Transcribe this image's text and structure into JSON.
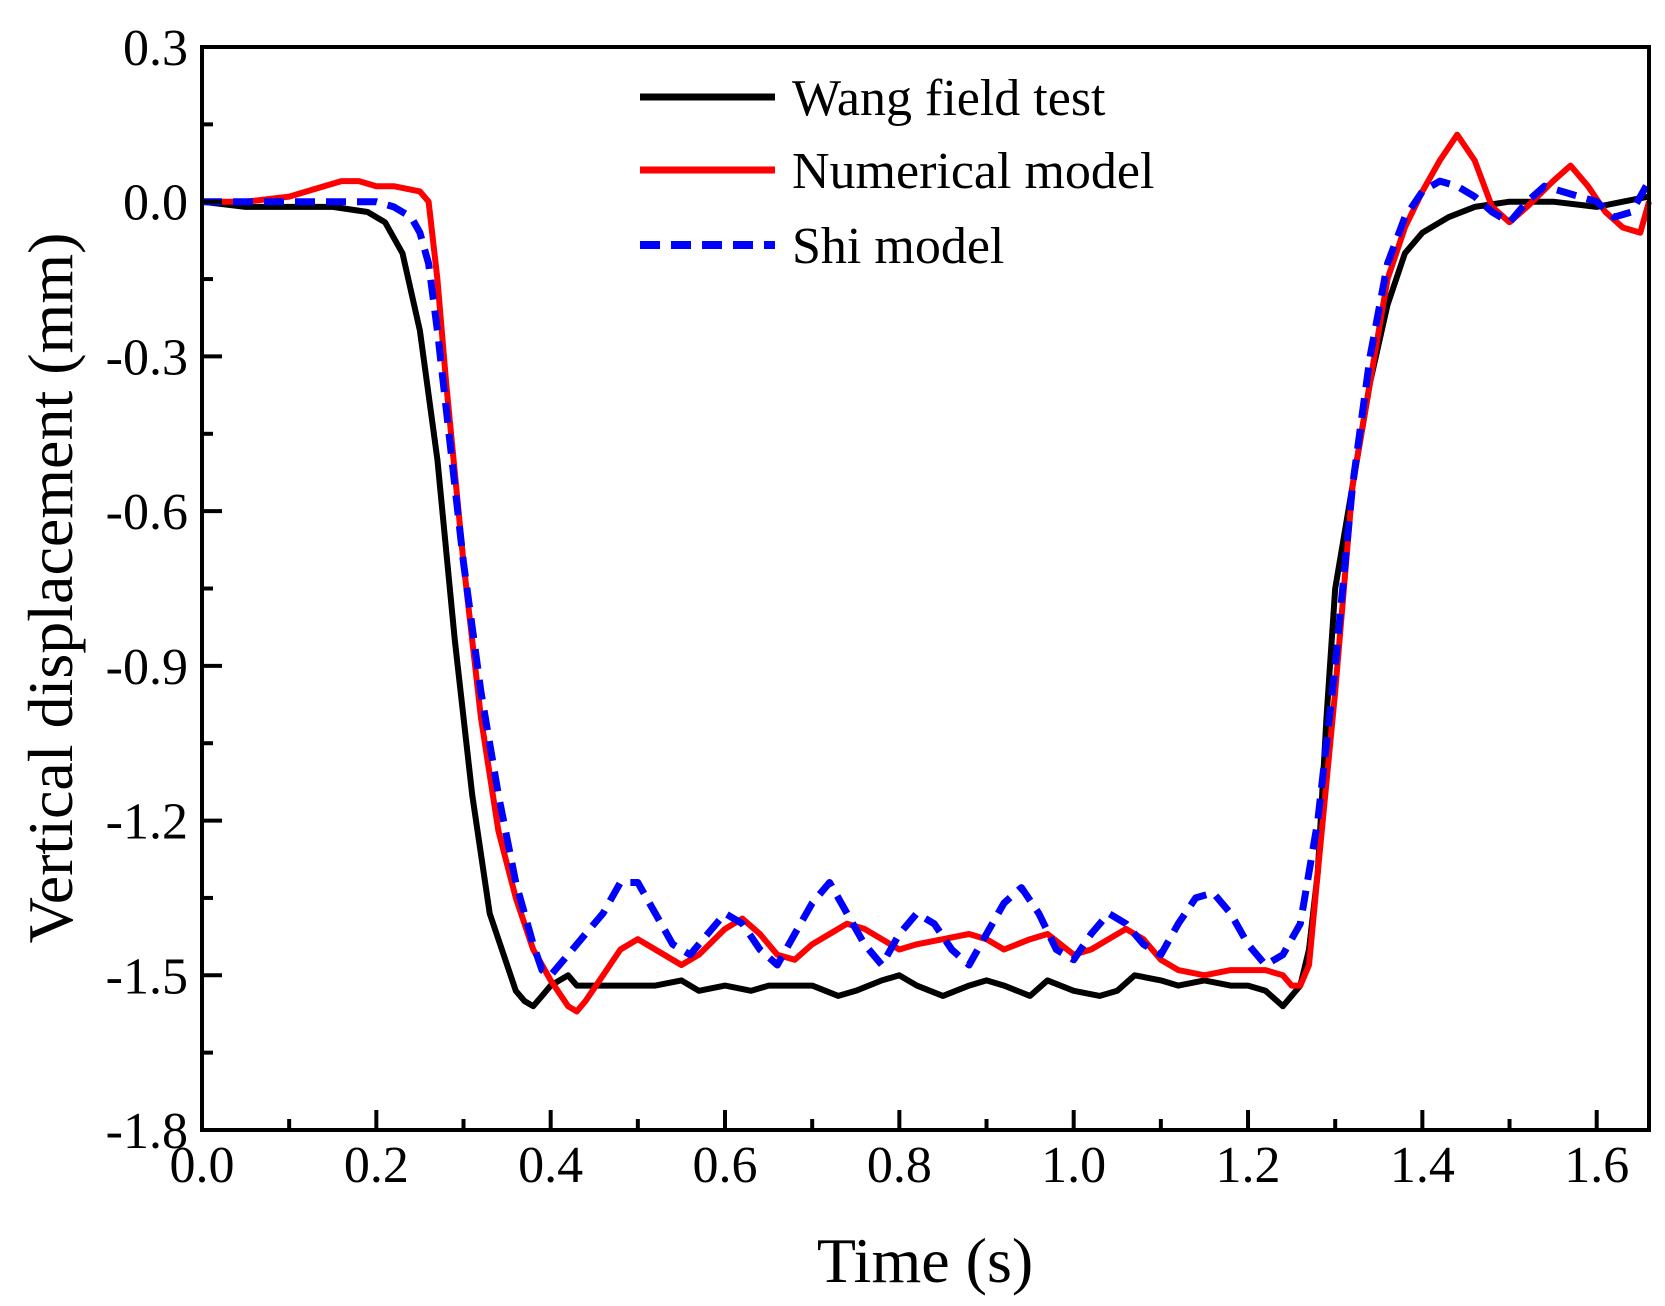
{
  "chart_data": {
    "type": "line",
    "title": "",
    "xlabel": "Time (s)",
    "ylabel": "Vertical displacement (mm)",
    "xlim": [
      0.0,
      1.66
    ],
    "ylim": [
      -1.8,
      0.3
    ],
    "x_ticks": [
      0.0,
      0.2,
      0.4,
      0.6,
      0.8,
      1.0,
      1.2,
      1.4,
      1.6
    ],
    "x_tick_labels": [
      "0.0",
      "0.2",
      "0.4",
      "0.6",
      "0.8",
      "1.0",
      "1.2",
      "1.4",
      "1.6"
    ],
    "y_ticks": [
      0.3,
      0.0,
      -0.3,
      -0.6,
      -0.9,
      -1.2,
      -1.5,
      -1.8
    ],
    "y_tick_labels": [
      "0.3",
      "0.0",
      "-0.3",
      "-0.6",
      "-0.9",
      "-1.2",
      "-1.5",
      "-1.8"
    ],
    "grid": false,
    "legend_position": "top-center",
    "series": [
      {
        "name": "Wang field test",
        "color": "#000000",
        "style": "solid",
        "x": [
          0.0,
          0.05,
          0.1,
          0.15,
          0.19,
          0.21,
          0.23,
          0.25,
          0.27,
          0.29,
          0.31,
          0.33,
          0.35,
          0.36,
          0.37,
          0.38,
          0.39,
          0.4,
          0.42,
          0.43,
          0.45,
          0.48,
          0.52,
          0.55,
          0.57,
          0.6,
          0.63,
          0.65,
          0.68,
          0.7,
          0.73,
          0.75,
          0.78,
          0.8,
          0.82,
          0.85,
          0.88,
          0.9,
          0.92,
          0.95,
          0.97,
          1.0,
          1.03,
          1.05,
          1.07,
          1.1,
          1.12,
          1.15,
          1.18,
          1.2,
          1.22,
          1.24,
          1.26,
          1.27,
          1.28,
          1.29,
          1.3,
          1.32,
          1.34,
          1.36,
          1.38,
          1.4,
          1.43,
          1.46,
          1.5,
          1.55,
          1.6,
          1.63,
          1.66
        ],
        "y": [
          0.0,
          -0.01,
          -0.01,
          -0.01,
          -0.02,
          -0.04,
          -0.1,
          -0.25,
          -0.5,
          -0.85,
          -1.15,
          -1.38,
          -1.48,
          -1.53,
          -1.55,
          -1.56,
          -1.54,
          -1.52,
          -1.5,
          -1.52,
          -1.52,
          -1.52,
          -1.52,
          -1.51,
          -1.53,
          -1.52,
          -1.53,
          -1.52,
          -1.52,
          -1.52,
          -1.54,
          -1.53,
          -1.51,
          -1.5,
          -1.52,
          -1.54,
          -1.52,
          -1.51,
          -1.52,
          -1.54,
          -1.51,
          -1.53,
          -1.54,
          -1.53,
          -1.5,
          -1.51,
          -1.52,
          -1.51,
          -1.52,
          -1.52,
          -1.53,
          -1.56,
          -1.52,
          -1.45,
          -1.3,
          -1.0,
          -0.75,
          -0.55,
          -0.35,
          -0.2,
          -0.1,
          -0.06,
          -0.03,
          -0.01,
          0.0,
          0.0,
          -0.01,
          0.0,
          0.01
        ]
      },
      {
        "name": "Numerical model",
        "color": "#ff0000",
        "style": "solid",
        "x": [
          0.0,
          0.05,
          0.1,
          0.14,
          0.16,
          0.18,
          0.2,
          0.22,
          0.25,
          0.26,
          0.27,
          0.28,
          0.3,
          0.32,
          0.34,
          0.36,
          0.38,
          0.4,
          0.42,
          0.43,
          0.44,
          0.46,
          0.48,
          0.5,
          0.52,
          0.55,
          0.57,
          0.6,
          0.62,
          0.64,
          0.66,
          0.68,
          0.7,
          0.72,
          0.74,
          0.76,
          0.78,
          0.8,
          0.82,
          0.85,
          0.88,
          0.9,
          0.92,
          0.95,
          0.97,
          1.0,
          1.02,
          1.04,
          1.06,
          1.08,
          1.1,
          1.12,
          1.15,
          1.18,
          1.2,
          1.22,
          1.24,
          1.25,
          1.26,
          1.27,
          1.28,
          1.3,
          1.32,
          1.34,
          1.36,
          1.38,
          1.4,
          1.42,
          1.44,
          1.46,
          1.48,
          1.5,
          1.52,
          1.55,
          1.57,
          1.59,
          1.61,
          1.63,
          1.65,
          1.66
        ],
        "y": [
          0.0,
          0.0,
          0.01,
          0.03,
          0.04,
          0.04,
          0.03,
          0.03,
          0.02,
          0.0,
          -0.15,
          -0.35,
          -0.7,
          -1.0,
          -1.22,
          -1.35,
          -1.45,
          -1.51,
          -1.56,
          -1.57,
          -1.55,
          -1.5,
          -1.45,
          -1.43,
          -1.45,
          -1.48,
          -1.46,
          -1.41,
          -1.39,
          -1.42,
          -1.46,
          -1.47,
          -1.44,
          -1.42,
          -1.4,
          -1.41,
          -1.43,
          -1.45,
          -1.44,
          -1.43,
          -1.42,
          -1.43,
          -1.45,
          -1.43,
          -1.42,
          -1.46,
          -1.45,
          -1.43,
          -1.41,
          -1.43,
          -1.47,
          -1.49,
          -1.5,
          -1.49,
          -1.49,
          -1.49,
          -1.5,
          -1.52,
          -1.52,
          -1.48,
          -1.3,
          -0.95,
          -0.55,
          -0.35,
          -0.15,
          -0.05,
          0.02,
          0.08,
          0.13,
          0.08,
          -0.01,
          -0.04,
          -0.01,
          0.04,
          0.07,
          0.03,
          -0.02,
          -0.05,
          -0.06,
          0.0
        ]
      },
      {
        "name": "Shi model",
        "color": "#0000ff",
        "style": "dashed",
        "x": [
          0.0,
          0.05,
          0.1,
          0.15,
          0.2,
          0.22,
          0.24,
          0.25,
          0.26,
          0.27,
          0.28,
          0.3,
          0.32,
          0.34,
          0.36,
          0.38,
          0.39,
          0.4,
          0.42,
          0.44,
          0.46,
          0.48,
          0.5,
          0.52,
          0.54,
          0.56,
          0.58,
          0.6,
          0.62,
          0.64,
          0.66,
          0.68,
          0.7,
          0.72,
          0.74,
          0.76,
          0.78,
          0.8,
          0.82,
          0.84,
          0.86,
          0.88,
          0.9,
          0.92,
          0.94,
          0.96,
          0.98,
          1.0,
          1.02,
          1.04,
          1.06,
          1.08,
          1.1,
          1.12,
          1.14,
          1.16,
          1.18,
          1.2,
          1.22,
          1.24,
          1.26,
          1.28,
          1.3,
          1.32,
          1.34,
          1.36,
          1.38,
          1.4,
          1.42,
          1.44,
          1.46,
          1.48,
          1.5,
          1.52,
          1.54,
          1.56,
          1.58,
          1.6,
          1.62,
          1.64,
          1.66
        ],
        "y": [
          0.0,
          0.0,
          0.0,
          0.0,
          0.0,
          -0.01,
          -0.03,
          -0.06,
          -0.12,
          -0.25,
          -0.4,
          -0.7,
          -0.95,
          -1.15,
          -1.32,
          -1.44,
          -1.49,
          -1.5,
          -1.46,
          -1.42,
          -1.38,
          -1.32,
          -1.32,
          -1.38,
          -1.44,
          -1.46,
          -1.42,
          -1.38,
          -1.4,
          -1.45,
          -1.48,
          -1.42,
          -1.36,
          -1.32,
          -1.38,
          -1.44,
          -1.48,
          -1.42,
          -1.38,
          -1.4,
          -1.45,
          -1.48,
          -1.42,
          -1.36,
          -1.33,
          -1.38,
          -1.45,
          -1.47,
          -1.42,
          -1.38,
          -1.4,
          -1.44,
          -1.46,
          -1.4,
          -1.35,
          -1.34,
          -1.38,
          -1.44,
          -1.48,
          -1.46,
          -1.4,
          -1.2,
          -0.9,
          -0.55,
          -0.3,
          -0.12,
          -0.03,
          0.02,
          0.04,
          0.03,
          0.01,
          -0.02,
          -0.04,
          0.0,
          0.03,
          0.02,
          0.01,
          0.0,
          -0.03,
          -0.02,
          0.04
        ]
      }
    ]
  }
}
